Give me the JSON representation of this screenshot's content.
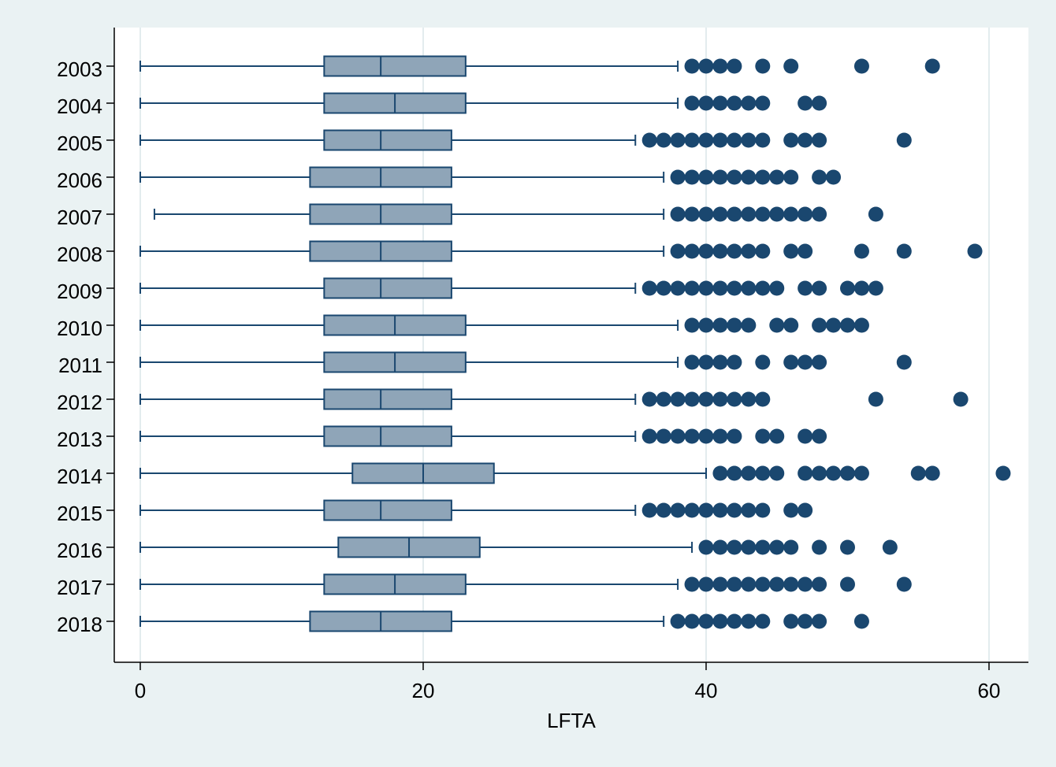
{
  "chart_data": {
    "type": "boxplot",
    "orientation": "horizontal",
    "title": "",
    "xlabel": "LFTA",
    "ylabel": "",
    "xlim": [
      0,
      63
    ],
    "x_ticks": [
      0,
      20,
      40,
      60
    ],
    "grid": true,
    "colors": {
      "background": "#eaf2f3",
      "plot_area": "#ffffff",
      "box_fill": "#8fa5b8",
      "stroke": "#1a476f",
      "outlier": "#1a476f",
      "grid": "#e3ecee"
    },
    "categories": [
      "2003",
      "2004",
      "2005",
      "2006",
      "2007",
      "2008",
      "2009",
      "2010",
      "2011",
      "2012",
      "2013",
      "2014",
      "2015",
      "2016",
      "2017",
      "2018"
    ],
    "boxes": [
      {
        "label": "2003",
        "whisker_low": 0,
        "q1": 13,
        "median": 17,
        "q3": 23,
        "whisker_high": 38,
        "outliers": [
          39,
          40,
          41,
          42,
          44,
          46,
          51,
          56
        ]
      },
      {
        "label": "2004",
        "whisker_low": 0,
        "q1": 13,
        "median": 18,
        "q3": 23,
        "whisker_high": 38,
        "outliers": [
          39,
          40,
          41,
          42,
          43,
          44,
          47,
          48
        ]
      },
      {
        "label": "2005",
        "whisker_low": 0,
        "q1": 13,
        "median": 17,
        "q3": 22,
        "whisker_high": 35,
        "outliers": [
          36,
          37,
          38,
          39,
          40,
          41,
          42,
          43,
          44,
          46,
          47,
          48,
          54
        ]
      },
      {
        "label": "2006",
        "whisker_low": 0,
        "q1": 12,
        "median": 17,
        "q3": 22,
        "whisker_high": 37,
        "outliers": [
          38,
          39,
          40,
          41,
          42,
          43,
          44,
          45,
          46,
          48,
          49
        ]
      },
      {
        "label": "2007",
        "whisker_low": 1,
        "q1": 12,
        "median": 17,
        "q3": 22,
        "whisker_high": 37,
        "outliers": [
          38,
          39,
          40,
          41,
          42,
          43,
          44,
          45,
          46,
          47,
          48,
          52
        ]
      },
      {
        "label": "2008",
        "whisker_low": 0,
        "q1": 12,
        "median": 17,
        "q3": 22,
        "whisker_high": 37,
        "outliers": [
          38,
          39,
          40,
          41,
          42,
          43,
          44,
          46,
          47,
          51,
          54,
          59
        ]
      },
      {
        "label": "2009",
        "whisker_low": 0,
        "q1": 13,
        "median": 17,
        "q3": 22,
        "whisker_high": 35,
        "outliers": [
          36,
          37,
          38,
          39,
          40,
          41,
          42,
          43,
          44,
          45,
          47,
          48,
          50,
          51,
          52
        ]
      },
      {
        "label": "2010",
        "whisker_low": 0,
        "q1": 13,
        "median": 18,
        "q3": 23,
        "whisker_high": 38,
        "outliers": [
          39,
          40,
          41,
          42,
          43,
          45,
          46,
          48,
          49,
          50,
          51
        ]
      },
      {
        "label": "2011",
        "whisker_low": 0,
        "q1": 13,
        "median": 18,
        "q3": 23,
        "whisker_high": 38,
        "outliers": [
          39,
          40,
          41,
          42,
          44,
          46,
          47,
          48,
          54
        ]
      },
      {
        "label": "2012",
        "whisker_low": 0,
        "q1": 13,
        "median": 17,
        "q3": 22,
        "whisker_high": 35,
        "outliers": [
          36,
          37,
          38,
          39,
          40,
          41,
          42,
          43,
          44,
          52,
          58
        ]
      },
      {
        "label": "2013",
        "whisker_low": 0,
        "q1": 13,
        "median": 17,
        "q3": 22,
        "whisker_high": 35,
        "outliers": [
          36,
          37,
          38,
          39,
          40,
          41,
          42,
          44,
          45,
          47,
          48
        ]
      },
      {
        "label": "2014",
        "whisker_low": 0,
        "q1": 15,
        "median": 20,
        "q3": 25,
        "whisker_high": 40,
        "outliers": [
          41,
          42,
          43,
          44,
          45,
          47,
          48,
          49,
          50,
          51,
          55,
          56,
          61
        ]
      },
      {
        "label": "2015",
        "whisker_low": 0,
        "q1": 13,
        "median": 17,
        "q3": 22,
        "whisker_high": 35,
        "outliers": [
          36,
          37,
          38,
          39,
          40,
          41,
          42,
          43,
          44,
          46,
          47
        ]
      },
      {
        "label": "2016",
        "whisker_low": 0,
        "q1": 14,
        "median": 19,
        "q3": 24,
        "whisker_high": 39,
        "outliers": [
          40,
          41,
          42,
          43,
          44,
          45,
          46,
          48,
          50,
          53
        ]
      },
      {
        "label": "2017",
        "whisker_low": 0,
        "q1": 13,
        "median": 18,
        "q3": 23,
        "whisker_high": 38,
        "outliers": [
          39,
          40,
          41,
          42,
          43,
          44,
          45,
          46,
          47,
          48,
          50,
          54
        ]
      },
      {
        "label": "2018",
        "whisker_low": 0,
        "q1": 12,
        "median": 17,
        "q3": 22,
        "whisker_high": 37,
        "outliers": [
          38,
          39,
          40,
          41,
          42,
          43,
          44,
          46,
          47,
          48,
          51
        ]
      }
    ]
  }
}
